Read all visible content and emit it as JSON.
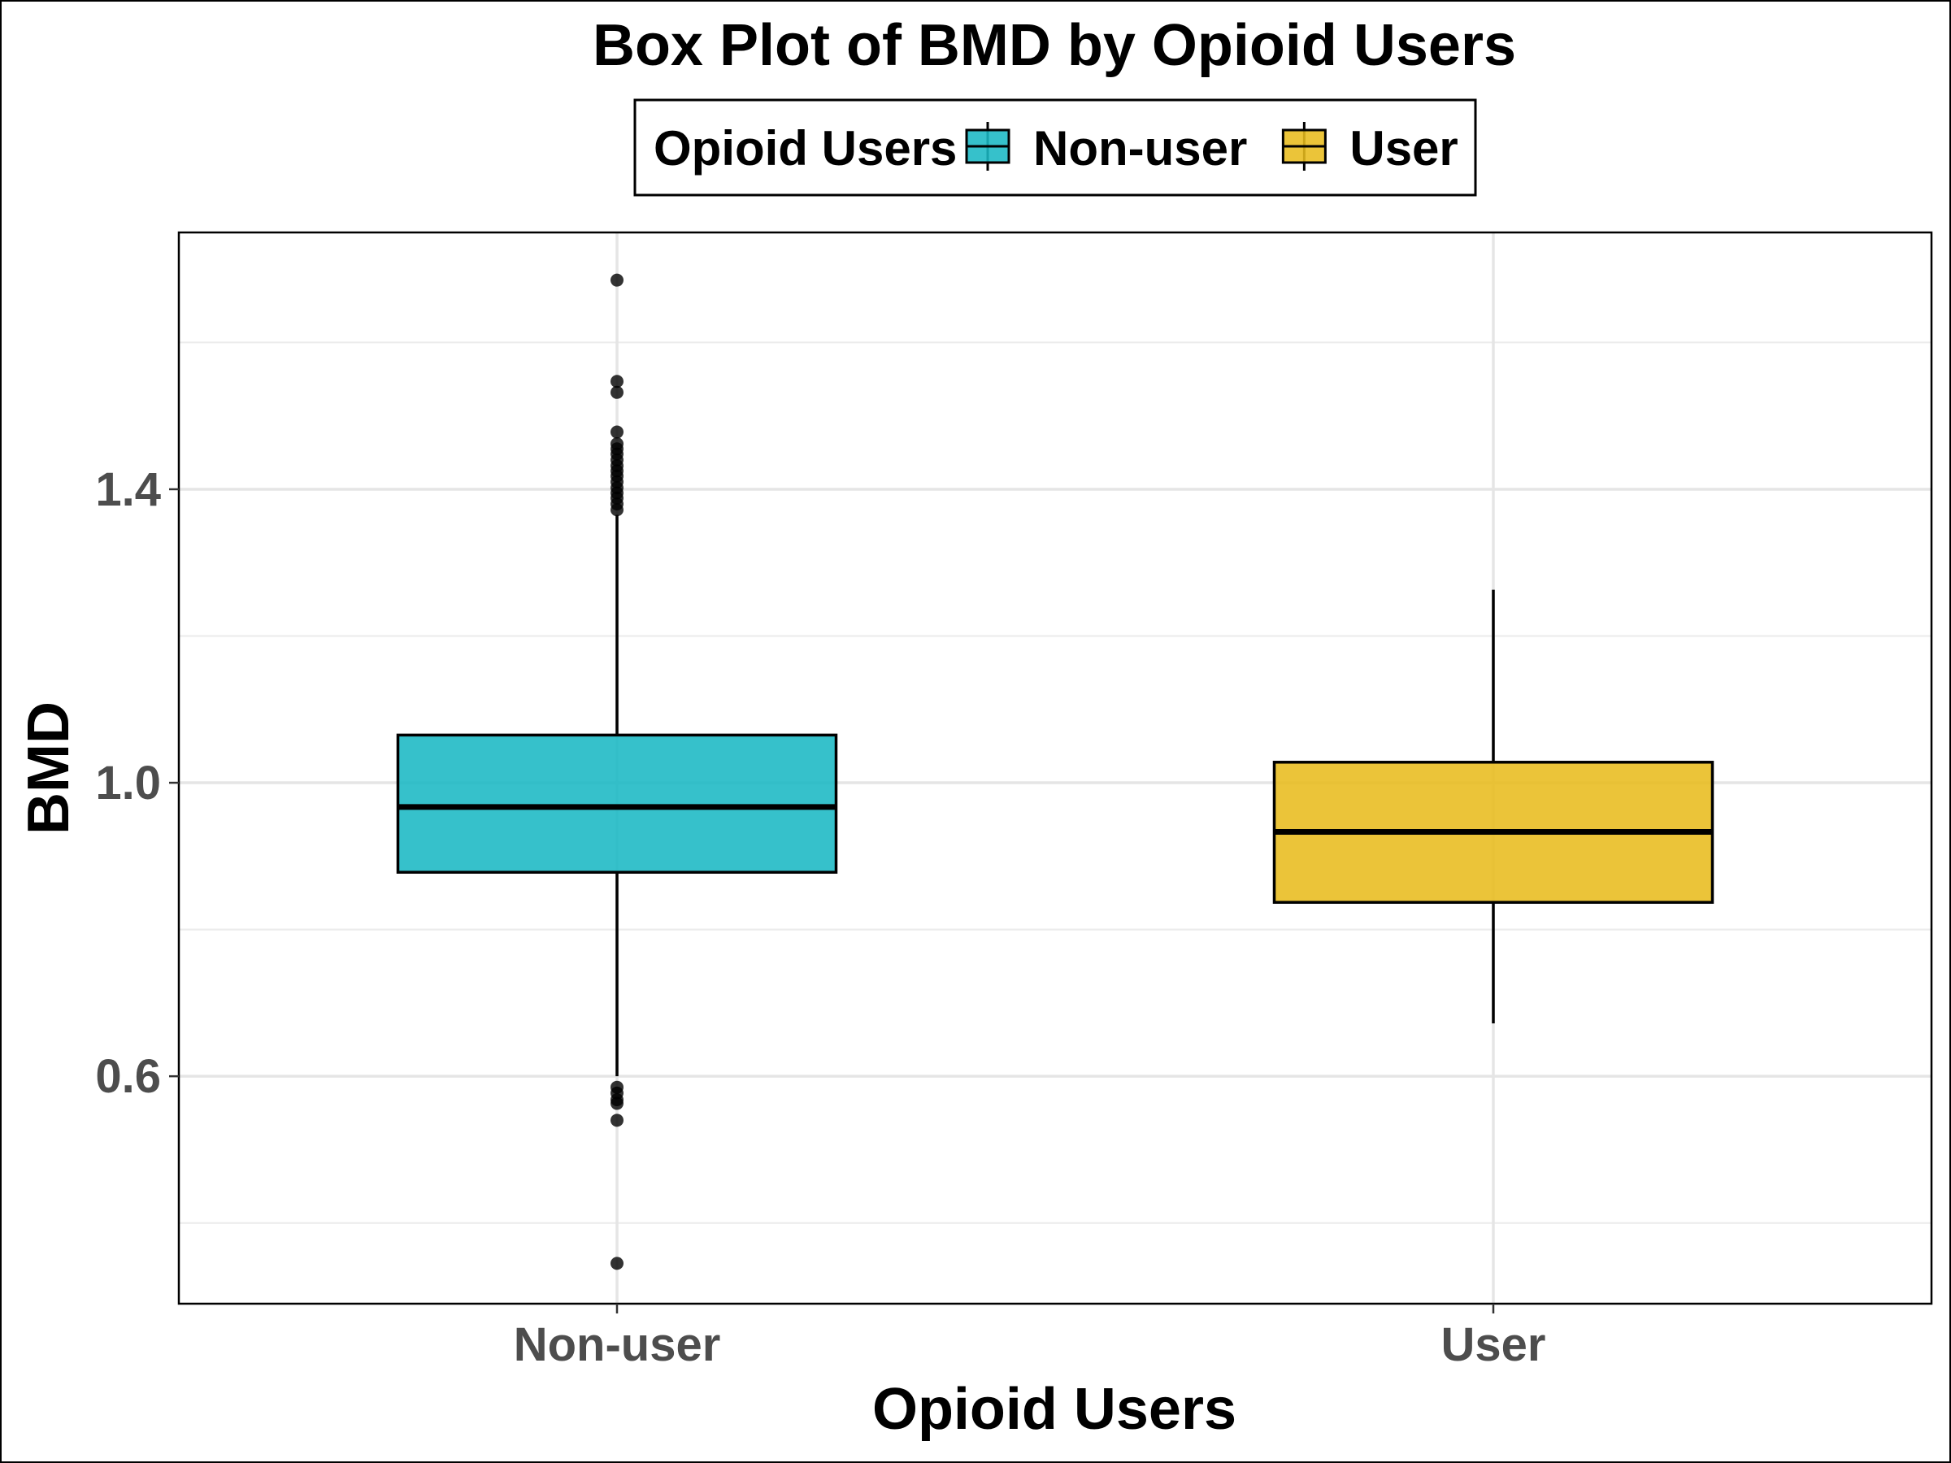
{
  "chart_data": {
    "type": "box",
    "title": "Box Plot of BMD by Opioid Users",
    "xlabel": "Opioid Users",
    "ylabel": "BMD",
    "ylim": [
      0.29,
      1.75
    ],
    "yticks": [
      0.6,
      1.0,
      1.4
    ],
    "grid": true,
    "legend": {
      "title": "Opioid Users",
      "position": "top"
    },
    "categories": [
      "Non-user",
      "User"
    ],
    "series": [
      {
        "name": "Non-user",
        "color": "#1ab8c4",
        "whisker_low": 0.6,
        "q1": 0.878,
        "median": 0.967,
        "q3": 1.065,
        "whisker_high": 1.365,
        "outliers": [
          1.685,
          1.547,
          1.532,
          1.478,
          1.462,
          1.455,
          1.448,
          1.44,
          1.432,
          1.425,
          1.418,
          1.41,
          1.402,
          1.395,
          1.388,
          1.38,
          1.372,
          0.585,
          0.577,
          0.568,
          0.563,
          0.54,
          0.345
        ]
      },
      {
        "name": "User",
        "color": "#e8bc1e",
        "whisker_low": 0.672,
        "q1": 0.837,
        "median": 0.933,
        "q3": 1.028,
        "whisker_high": 1.263,
        "outliers": []
      }
    ]
  }
}
